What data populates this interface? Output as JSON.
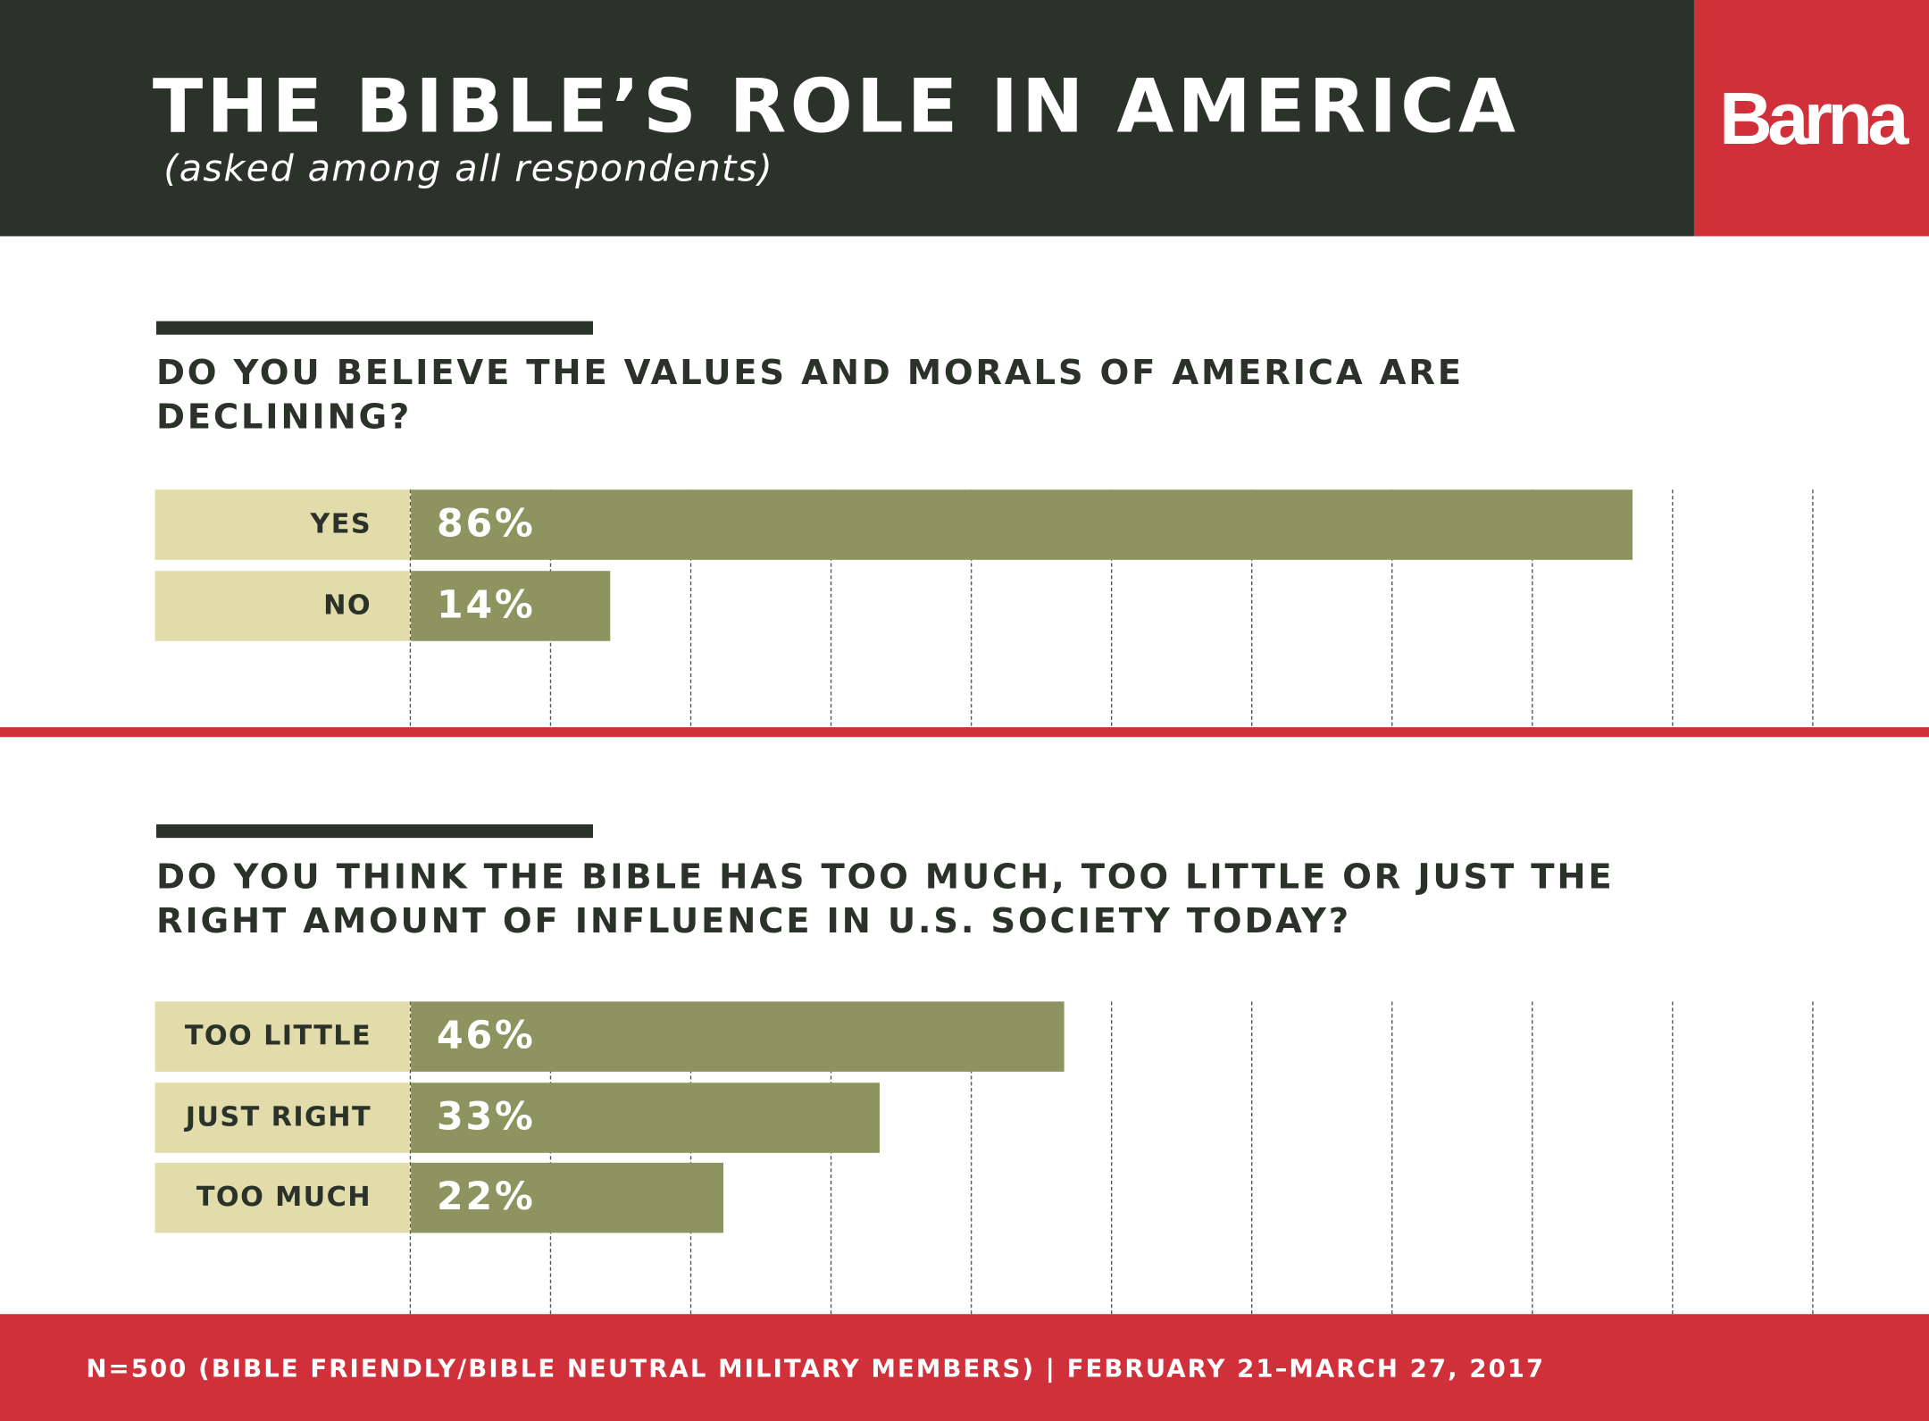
{
  "header": {
    "title": "THE BIBLE’S ROLE IN AMERICA",
    "subtitle": "(asked among all respondents)",
    "logo": "Barna"
  },
  "colors": {
    "header_bg": "#2b3229",
    "brand_red": "#d0303a",
    "bar": "#8e945f",
    "label_bg": "#e1dcaa"
  },
  "chart_data": [
    {
      "type": "bar",
      "orientation": "horizontal",
      "title": "DO YOU BELIEVE THE VALUES AND MORALS OF AMERICA ARE DECLINING?",
      "categories": [
        "YES",
        "NO"
      ],
      "values": [
        86,
        14
      ],
      "value_labels": [
        "86%",
        "14%"
      ],
      "xlim": [
        0,
        100
      ],
      "grid": true
    },
    {
      "type": "bar",
      "orientation": "horizontal",
      "title": "DO YOU THINK THE BIBLE HAS TOO MUCH, TOO LITTLE OR JUST THE RIGHT AMOUNT OF INFLUENCE IN U.S. SOCIETY TODAY?",
      "categories": [
        "TOO LITTLE",
        "JUST RIGHT",
        "TOO MUCH"
      ],
      "values": [
        46,
        33,
        22
      ],
      "value_labels": [
        "46%",
        "33%",
        "22%"
      ],
      "xlim": [
        0,
        100
      ],
      "grid": true
    }
  ],
  "footer": {
    "note": "N=500 (BIBLE FRIENDLY/BIBLE NEUTRAL MILITARY MEMBERS) | FEBRUARY 21–MARCH 27, 2017"
  }
}
